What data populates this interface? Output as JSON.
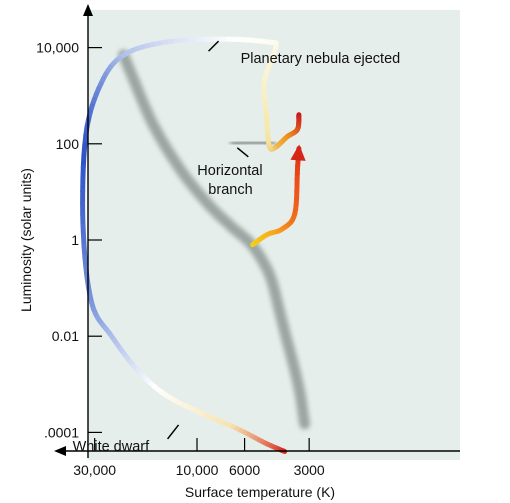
{
  "chart_data": {
    "type": "line",
    "title": "",
    "xlabel": "Surface temperature (K)",
    "ylabel": "Luminosity (solar units)",
    "x_scale": "log",
    "x_reversed": true,
    "y_scale": "log",
    "xlim": [
      40000,
      2400
    ],
    "ylim": [
      3e-05,
      30000
    ],
    "x_ticks": [
      {
        "value": 30000,
        "label": "30,000"
      },
      {
        "value": 10000,
        "label": "10,000"
      },
      {
        "value": 6000,
        "label": "6000"
      },
      {
        "value": 3000,
        "label": "3000"
      }
    ],
    "y_ticks": [
      {
        "value": 10000,
        "label": "10,000"
      },
      {
        "value": 100,
        "label": "100"
      },
      {
        "value": 1,
        "label": "1"
      },
      {
        "value": 0.01,
        "label": "0.01"
      },
      {
        "value": 0.0001,
        "label": ".0001"
      }
    ],
    "grid": false,
    "legend": "none",
    "series": [
      {
        "kind": "main-sequence-band",
        "color": "#8f9a97",
        "x": [
          22000,
          20000,
          16000,
          12000,
          9000,
          7000,
          5700,
          5000,
          4500,
          4100,
          3800,
          3500,
          3300,
          3150
        ],
        "y": [
          7000,
          2500,
          250,
          30,
          6,
          2,
          0.9,
          0.4,
          0.15,
          0.03,
          0.008,
          0.002,
          0.0006,
          0.00015
        ]
      },
      {
        "kind": "horizontal-branch",
        "color": "#8f9a97",
        "x": [
          6700,
          6000,
          5300,
          4800,
          4500
        ],
        "y": [
          100,
          105,
          108,
          105,
          100
        ]
      },
      {
        "kind": "evolutionary-track",
        "stage": "red-giant",
        "x": [
          5500,
          4700,
          4000,
          3500,
          3400,
          3350
        ],
        "y": [
          0.8,
          1.3,
          1.7,
          3.5,
          30,
          80
        ],
        "colors": [
          "#f2d21a",
          "#f7a11f",
          "#ef5a1a",
          "#d62418"
        ]
      },
      {
        "kind": "evolutionary-track",
        "stage": "post-agb",
        "x": [
          3350,
          3400,
          3800,
          4300,
          4600,
          4750,
          4850,
          4300,
          4600,
          7500,
          14000,
          22000,
          28000,
          33000,
          34000,
          31000,
          25000,
          19000,
          14000,
          9500,
          6500,
          4800,
          3900
        ],
        "y": [
          400,
          200,
          140,
          85,
          90,
          400,
          2000,
          10000,
          13000,
          15000,
          13000,
          7000,
          1800,
          150,
          2,
          0.05,
          0.01,
          0.002,
          0.0006,
          0.00025,
          0.00012,
          6e-05,
          4e-05
        ],
        "colors": [
          "#c8131b",
          "#f0991e",
          "#f4e7a8",
          "#fbf6dc",
          "#ffffff",
          "#b0c0ea",
          "#2d52c8",
          "#8ea6e0",
          "#ffffff",
          "#f5e4b0",
          "#d4201a"
        ]
      }
    ],
    "annotations": [
      {
        "text": "Planetary nebula ejected",
        "x": 7600,
        "y": 15000
      },
      {
        "text": "Horizontal",
        "x": 6700,
        "y": 100
      },
      {
        "text": "branch",
        "x": 6700,
        "y": 100
      },
      {
        "text": "White dwarf",
        "x": 13000,
        "y": 0.0006
      }
    ],
    "plot_background": "#e6eeeb",
    "axis_color": "#000000"
  }
}
